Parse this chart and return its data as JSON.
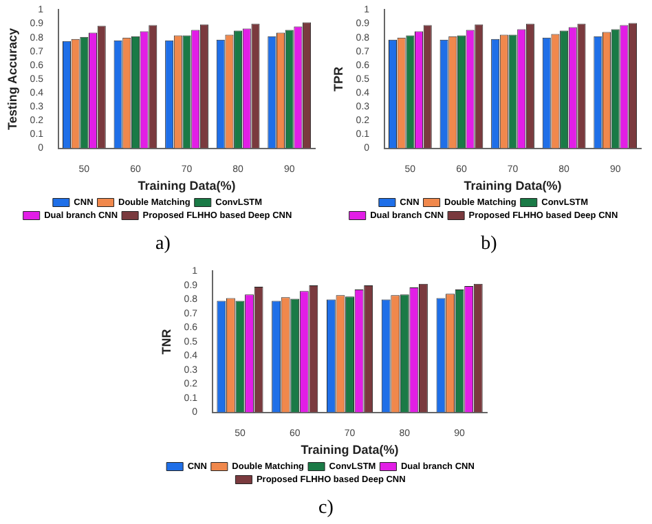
{
  "chart_data": [
    {
      "type": "bar",
      "xlabel": "Training Data(%)",
      "ylabel": "Testing Accuracy",
      "annotations": [
        "a)"
      ],
      "categories": [
        "50",
        "60",
        "70",
        "80",
        "90"
      ],
      "ylim": [
        0,
        1
      ],
      "yticks": [
        0,
        0.1,
        0.2,
        0.3,
        0.4,
        0.5,
        0.6,
        0.7,
        0.8,
        0.9,
        1
      ],
      "legend": "bottom",
      "series": [
        {
          "name": "CNN",
          "color": "#1f6fe8",
          "values": [
            0.775,
            0.78,
            0.78,
            0.785,
            0.81
          ]
        },
        {
          "name": "Double Matching",
          "color": "#f0884c",
          "values": [
            0.79,
            0.8,
            0.815,
            0.82,
            0.835
          ]
        },
        {
          "name": "ConvLSTM",
          "color": "#1a7a46",
          "values": [
            0.805,
            0.81,
            0.815,
            0.85,
            0.855
          ]
        },
        {
          "name": "Dual branch CNN",
          "color": "#e21ee6",
          "values": [
            0.835,
            0.845,
            0.855,
            0.865,
            0.88
          ]
        },
        {
          "name": "Proposed FLHHO based Deep CNN",
          "color": "#7a3a3e",
          "values": [
            0.885,
            0.89,
            0.895,
            0.9,
            0.91
          ]
        }
      ]
    },
    {
      "type": "bar",
      "xlabel": "Training Data(%)",
      "ylabel": "TPR",
      "annotations": [
        "b)"
      ],
      "categories": [
        "50",
        "60",
        "70",
        "80",
        "90"
      ],
      "ylim": [
        0,
        1
      ],
      "yticks": [
        0,
        0.1,
        0.2,
        0.3,
        0.4,
        0.5,
        0.6,
        0.7,
        0.8,
        0.9,
        1
      ],
      "legend": "bottom",
      "series": [
        {
          "name": "CNN",
          "color": "#1f6fe8",
          "values": [
            0.785,
            0.785,
            0.79,
            0.8,
            0.81
          ]
        },
        {
          "name": "Double Matching",
          "color": "#f0884c",
          "values": [
            0.8,
            0.81,
            0.82,
            0.825,
            0.84
          ]
        },
        {
          "name": "ConvLSTM",
          "color": "#1a7a46",
          "values": [
            0.815,
            0.815,
            0.82,
            0.85,
            0.86
          ]
        },
        {
          "name": "Dual branch CNN",
          "color": "#e21ee6",
          "values": [
            0.845,
            0.855,
            0.86,
            0.875,
            0.89
          ]
        },
        {
          "name": "Proposed FLHHO based Deep CNN",
          "color": "#7a3a3e",
          "values": [
            0.89,
            0.895,
            0.9,
            0.9,
            0.905
          ]
        }
      ]
    },
    {
      "type": "bar",
      "xlabel": "Training Data(%)",
      "ylabel": "TNR",
      "annotations": [
        "c)"
      ],
      "categories": [
        "50",
        "60",
        "70",
        "80",
        "90"
      ],
      "ylim": [
        0,
        1
      ],
      "yticks": [
        0,
        0.1,
        0.2,
        0.3,
        0.4,
        0.5,
        0.6,
        0.7,
        0.8,
        0.9,
        1
      ],
      "legend": "bottom",
      "series": [
        {
          "name": "CNN",
          "color": "#1f6fe8",
          "values": [
            0.79,
            0.79,
            0.8,
            0.8,
            0.81
          ]
        },
        {
          "name": "Double Matching",
          "color": "#f0884c",
          "values": [
            0.81,
            0.815,
            0.83,
            0.83,
            0.84
          ]
        },
        {
          "name": "ConvLSTM",
          "color": "#1a7a46",
          "values": [
            0.79,
            0.805,
            0.82,
            0.835,
            0.87
          ]
        },
        {
          "name": "Dual branch CNN",
          "color": "#e21ee6",
          "values": [
            0.835,
            0.86,
            0.87,
            0.885,
            0.895
          ]
        },
        {
          "name": "Proposed FLHHO based Deep CNN",
          "color": "#7a3a3e",
          "values": [
            0.89,
            0.9,
            0.9,
            0.91,
            0.91
          ]
        }
      ]
    }
  ]
}
